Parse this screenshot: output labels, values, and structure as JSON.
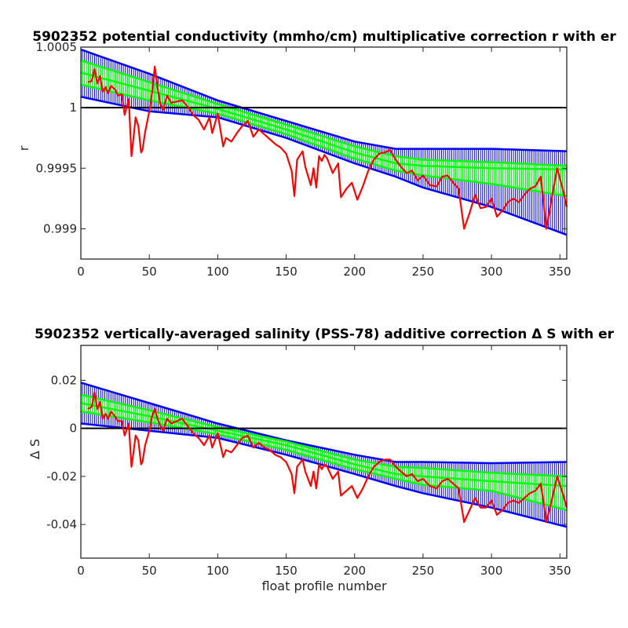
{
  "chart_data": [
    {
      "type": "line",
      "title": "5902352 potential conductivity (mmho/cm) multiplicative correction r with er",
      "xlabel": "",
      "ylabel": "r",
      "xlim": [
        0,
        355
      ],
      "ylim": [
        0.99875,
        1.0005
      ],
      "xticks": [
        0,
        50,
        100,
        150,
        200,
        250,
        300,
        350
      ],
      "xtick_labels": [
        "0",
        "50",
        "100",
        "150",
        "200",
        "250",
        "300",
        "350"
      ],
      "yticks": [
        0.999,
        0.9995,
        1,
        1.0005
      ],
      "ytick_labels": [
        "0.999",
        "0.9995",
        "1",
        "1.0005"
      ],
      "reference_line": 1,
      "grid": false,
      "colors": {
        "fit_band": "#0000ff",
        "error_band": "#00ff00",
        "measured": "#ff0000",
        "reference": "#000000"
      },
      "series": [
        {
          "role": "fit_center",
          "x": [
            0,
            50,
            100,
            150,
            200,
            230,
            250,
            300,
            355
          ],
          "y": [
            1.00029,
            1.00014,
            0.99999,
            0.99982,
            0.99963,
            0.99954,
            0.99952,
            0.9995,
            0.99949
          ]
        },
        {
          "role": "fit_upper",
          "x": [
            0,
            50,
            100,
            150,
            200,
            230,
            250,
            300,
            355
          ],
          "y": [
            1.00048,
            1.00028,
            1.00006,
            0.99989,
            0.99972,
            0.99966,
            0.99966,
            0.99966,
            0.99964
          ]
        },
        {
          "role": "fit_lower",
          "x": [
            0,
            50,
            100,
            150,
            200,
            230,
            250,
            300,
            355
          ],
          "y": [
            1.00009,
            0.99997,
            0.99992,
            0.99975,
            0.99954,
            0.99943,
            0.99934,
            0.99918,
            0.99895
          ]
        },
        {
          "role": "error_upper",
          "x": [
            0,
            50,
            100,
            150,
            200,
            230,
            250,
            300,
            355
          ],
          "y": [
            1.00039,
            1.00021,
            1.00003,
            0.99986,
            0.99968,
            0.9996,
            0.99957,
            0.99955,
            0.99952
          ]
        },
        {
          "role": "error_lower",
          "x": [
            0,
            50,
            100,
            150,
            200,
            230,
            250,
            300,
            355
          ],
          "y": [
            1.00019,
            1.00006,
            0.99995,
            0.99978,
            0.99958,
            0.99948,
            0.99944,
            0.99937,
            0.99927
          ]
        },
        {
          "role": "measured",
          "x": [
            5,
            8,
            10,
            12,
            14,
            16,
            18,
            20,
            22,
            25,
            27,
            30,
            32,
            35,
            37,
            38,
            40,
            42,
            44,
            45,
            47,
            50,
            52,
            54,
            56,
            58,
            60,
            63,
            66,
            70,
            74,
            78,
            82,
            86,
            90,
            94,
            96,
            100,
            104,
            106,
            110,
            114,
            118,
            122,
            126,
            130,
            134,
            138,
            142,
            146,
            150,
            154,
            156,
            158,
            162,
            164,
            168,
            170,
            172,
            174,
            176,
            178,
            180,
            184,
            188,
            190,
            194,
            198,
            202,
            206,
            210,
            214,
            218,
            222,
            226,
            230,
            234,
            238,
            242,
            246,
            250,
            255,
            260,
            264,
            268,
            272,
            276,
            280,
            284,
            288,
            292,
            296,
            300,
            304,
            308,
            312,
            316,
            320,
            324,
            328,
            332,
            336,
            340,
            344,
            348,
            352,
            355
          ],
          "y": [
            1.00021,
            1.00022,
            1.00032,
            1.0002,
            1.00026,
            1.00013,
            1.00017,
            1.00012,
            1.00018,
            1.00015,
            1.0001,
            1.00011,
            0.99994,
            1.00007,
            0.9996,
            0.9997,
            0.99992,
            0.99985,
            0.99963,
            0.99965,
            0.9998,
            0.99997,
            1.00012,
            1.00034,
            1.00017,
            1.00003,
            0.99998,
            1.0001,
            1.00004,
            1.00005,
            1.00006,
            1.00001,
            0.99994,
            0.9999,
            0.99982,
            0.99992,
            0.99979,
            0.99995,
            0.99968,
            0.99975,
            0.99972,
            0.99979,
            0.99985,
            0.99989,
            0.99976,
            0.99982,
            0.99978,
            0.99974,
            0.9997,
            0.99967,
            0.99962,
            0.99948,
            0.99927,
            0.99957,
            0.99964,
            0.99951,
            0.99936,
            0.9995,
            0.99934,
            0.9996,
            0.99956,
            0.99961,
            0.99958,
            0.99946,
            0.99954,
            0.99926,
            0.99933,
            0.99938,
            0.99924,
            0.99935,
            0.99948,
            0.99957,
            0.99962,
            0.99963,
            0.99965,
            0.99957,
            0.99951,
            0.99946,
            0.99948,
            0.9994,
            0.99944,
            0.99936,
            0.99935,
            0.99943,
            0.99944,
            0.99938,
            0.99933,
            0.999,
            0.99913,
            0.99928,
            0.99917,
            0.99918,
            0.99925,
            0.9991,
            0.99915,
            0.99922,
            0.99925,
            0.99922,
            0.99928,
            0.99933,
            0.99935,
            0.99943,
            0.999,
            0.99925,
            0.9995,
            0.99933,
            0.99918
          ]
        }
      ]
    },
    {
      "type": "line",
      "title": "5902352 vertically-averaged salinity (PSS-78) additive correction Δ S with er",
      "xlabel": "float profile number",
      "ylabel": "Δ S",
      "xlim": [
        0,
        355
      ],
      "ylim": [
        -0.054,
        0.0345
      ],
      "xticks": [
        0,
        50,
        100,
        150,
        200,
        250,
        300,
        350
      ],
      "xtick_labels": [
        "0",
        "50",
        "100",
        "150",
        "200",
        "250",
        "300",
        "350"
      ],
      "yticks": [
        -0.04,
        -0.02,
        0,
        0.02
      ],
      "ytick_labels": [
        "-0.04",
        "-0.02",
        "0",
        "0.02"
      ],
      "reference_line": 0,
      "grid": false,
      "colors": {
        "fit_band": "#0000ff",
        "error_band": "#00ff00",
        "measured": "#ff0000",
        "reference": "#000000"
      },
      "series": [
        {
          "role": "fit_center",
          "x": [
            0,
            50,
            100,
            150,
            200,
            230,
            250,
            300,
            355
          ],
          "y": [
            0.0105,
            0.005,
            -0.001,
            -0.007,
            -0.015,
            -0.019,
            -0.02,
            -0.022,
            -0.024
          ]
        },
        {
          "role": "fit_upper",
          "x": [
            0,
            50,
            100,
            150,
            200,
            230,
            250,
            300,
            355
          ],
          "y": [
            0.019,
            0.0105,
            0.002,
            -0.005,
            -0.011,
            -0.014,
            -0.014,
            -0.0145,
            -0.014
          ]
        },
        {
          "role": "fit_lower",
          "x": [
            0,
            50,
            100,
            150,
            200,
            230,
            250,
            300,
            355
          ],
          "y": [
            0.002,
            -0.001,
            -0.004,
            -0.011,
            -0.019,
            -0.024,
            -0.027,
            -0.033,
            -0.041
          ]
        },
        {
          "role": "error_upper",
          "x": [
            0,
            50,
            100,
            150,
            200,
            230,
            250,
            300,
            355
          ],
          "y": [
            0.014,
            0.0075,
            0.0005,
            -0.0055,
            -0.013,
            -0.016,
            -0.0165,
            -0.0185,
            -0.02
          ]
        },
        {
          "role": "error_lower",
          "x": [
            0,
            50,
            100,
            150,
            200,
            230,
            250,
            300,
            355
          ],
          "y": [
            0.007,
            0.0025,
            -0.0025,
            -0.009,
            -0.017,
            -0.021,
            -0.0235,
            -0.026,
            -0.034
          ]
        },
        {
          "role": "measured",
          "x": [
            5,
            8,
            10,
            12,
            14,
            16,
            18,
            20,
            22,
            25,
            27,
            30,
            32,
            35,
            37,
            38,
            40,
            42,
            44,
            45,
            47,
            50,
            52,
            54,
            56,
            58,
            60,
            63,
            66,
            70,
            74,
            78,
            82,
            86,
            90,
            94,
            96,
            100,
            104,
            106,
            110,
            114,
            118,
            122,
            126,
            130,
            134,
            138,
            142,
            146,
            150,
            154,
            156,
            158,
            162,
            164,
            168,
            170,
            172,
            174,
            176,
            178,
            180,
            184,
            188,
            190,
            194,
            198,
            202,
            206,
            210,
            214,
            218,
            222,
            226,
            230,
            234,
            238,
            242,
            246,
            250,
            255,
            260,
            264,
            268,
            272,
            276,
            280,
            284,
            288,
            292,
            296,
            300,
            304,
            308,
            312,
            316,
            320,
            324,
            328,
            332,
            336,
            340,
            344,
            348,
            352,
            355
          ],
          "y": [
            0.008,
            0.009,
            0.015,
            0.008,
            0.011,
            0.004,
            0.006,
            0.004,
            0.007,
            0.005,
            0.003,
            0.003,
            -0.003,
            0.002,
            -0.016,
            -0.012,
            -0.003,
            -0.005,
            -0.015,
            -0.014,
            -0.007,
            -0.001,
            0.005,
            0.008,
            0.004,
            0.001,
            -0.001,
            0.004,
            0.002,
            0.003,
            0.004,
            0.001,
            -0.002,
            -0.004,
            -0.007,
            -0.003,
            -0.008,
            -0.002,
            -0.012,
            -0.009,
            -0.01,
            -0.007,
            -0.004,
            -0.003,
            -0.008,
            -0.006,
            -0.008,
            -0.009,
            -0.011,
            -0.012,
            -0.014,
            -0.019,
            -0.027,
            -0.016,
            -0.013,
            -0.018,
            -0.024,
            -0.018,
            -0.025,
            -0.015,
            -0.017,
            -0.015,
            -0.016,
            -0.021,
            -0.018,
            -0.028,
            -0.026,
            -0.024,
            -0.029,
            -0.025,
            -0.02,
            -0.016,
            -0.014,
            -0.013,
            -0.013,
            -0.016,
            -0.018,
            -0.02,
            -0.019,
            -0.022,
            -0.021,
            -0.024,
            -0.025,
            -0.022,
            -0.021,
            -0.023,
            -0.025,
            -0.039,
            -0.034,
            -0.029,
            -0.033,
            -0.033,
            -0.03,
            -0.036,
            -0.034,
            -0.031,
            -0.03,
            -0.031,
            -0.029,
            -0.027,
            -0.026,
            -0.023,
            -0.039,
            -0.03,
            -0.02,
            -0.027,
            -0.033
          ]
        }
      ]
    }
  ]
}
